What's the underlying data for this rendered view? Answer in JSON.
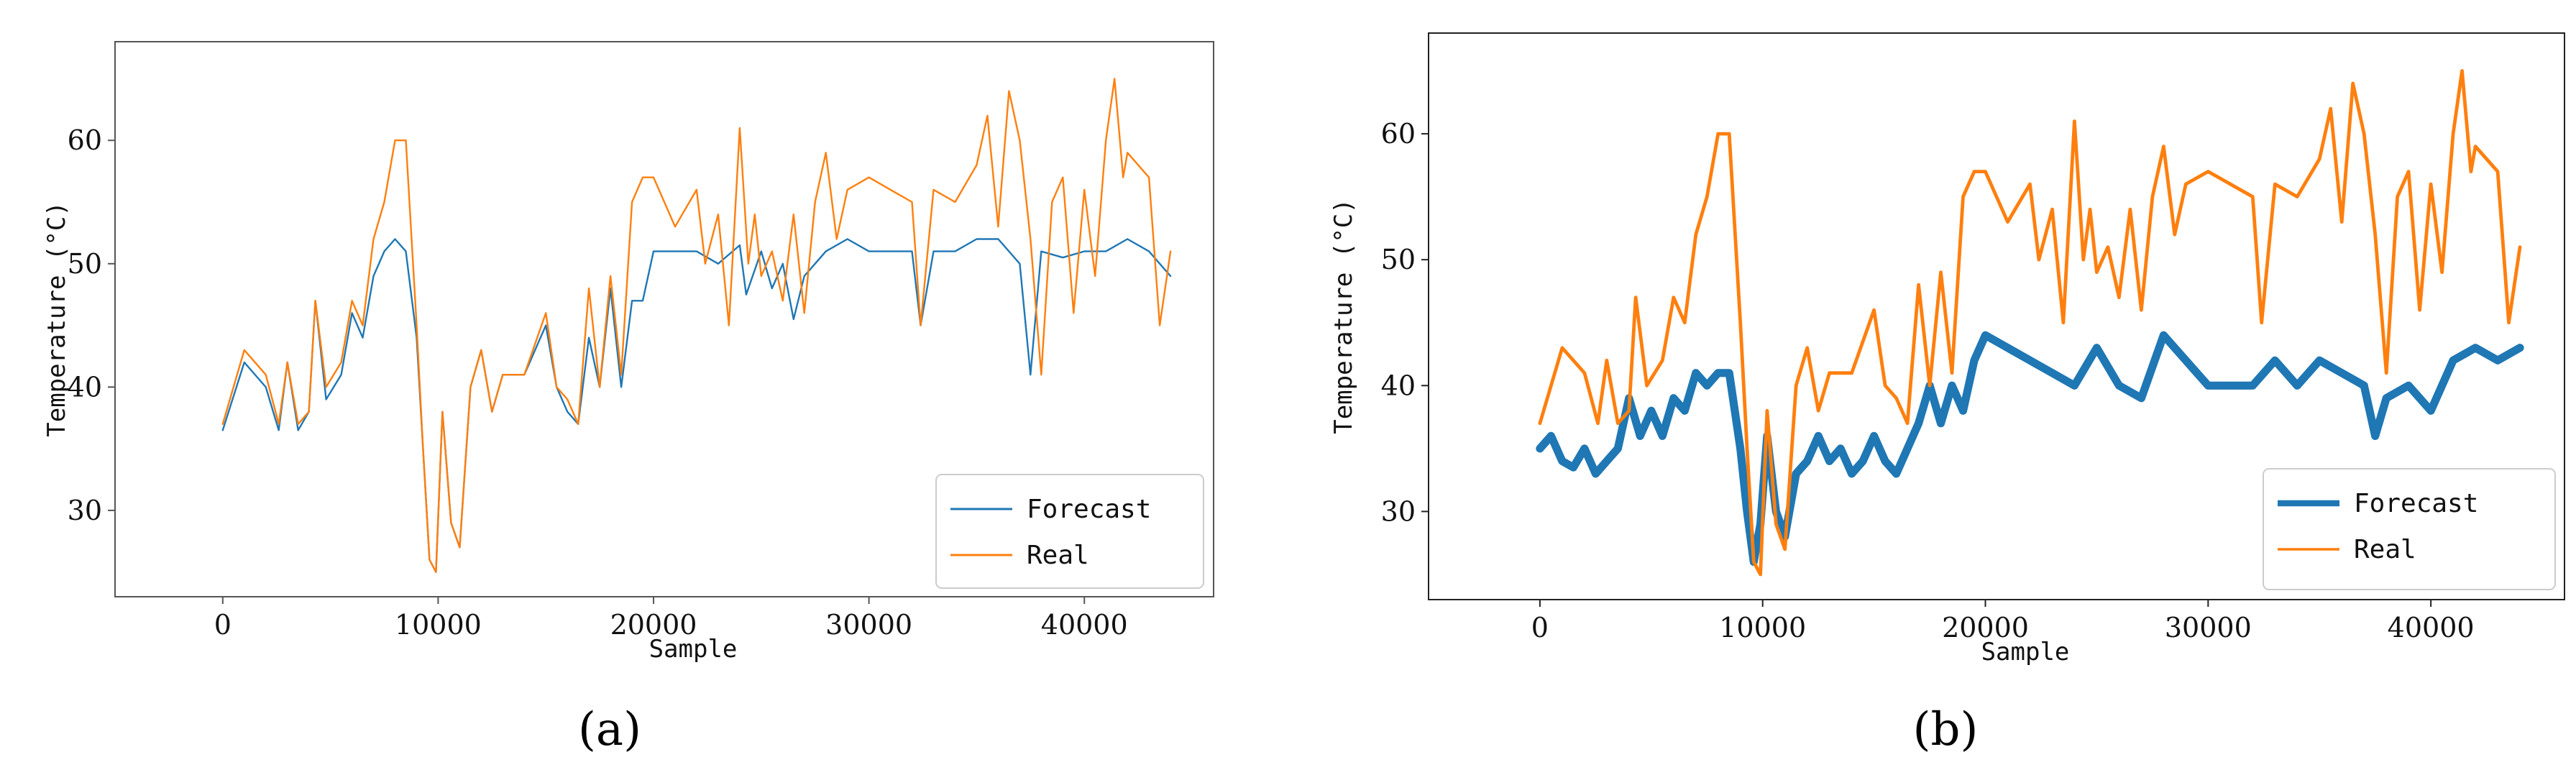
{
  "colors": {
    "forecast": "#1f77b4",
    "real": "#ff7f0e",
    "axis": "#333333"
  },
  "chart_data": [
    {
      "id": "a",
      "type": "line",
      "caption": "(a)",
      "xlabel": "Sample",
      "ylabel": "Temperature (°C)",
      "xlim": [
        -5000,
        46000
      ],
      "ylim": [
        23,
        68
      ],
      "xticks": [
        0,
        10000,
        20000,
        30000,
        40000
      ],
      "xtick_labels": [
        "0",
        "10000",
        "20000",
        "30000",
        "40000"
      ],
      "yticks": [
        30,
        40,
        50,
        60
      ],
      "ytick_labels": [
        "30",
        "40",
        "50",
        "60"
      ],
      "legend_position": "bottom-right",
      "series": [
        {
          "name": "Forecast",
          "color": "#1f77b4",
          "width": 1.5,
          "x": [
            0,
            1000,
            2000,
            2600,
            3000,
            3500,
            4000,
            4300,
            4800,
            5500,
            6000,
            6500,
            7000,
            7500,
            8000,
            8500,
            9000,
            9300,
            9600,
            9900,
            10200,
            10600,
            11000,
            11500,
            12000,
            12500,
            13000,
            14000,
            15000,
            15500,
            16000,
            16500,
            17000,
            17500,
            18000,
            18500,
            19000,
            19500,
            20000,
            21000,
            22000,
            23000,
            24000,
            24300,
            25000,
            25500,
            26000,
            26500,
            27000,
            28000,
            29000,
            30000,
            31000,
            32000,
            32400,
            33000,
            34000,
            35000,
            36000,
            37000,
            37500,
            38000,
            39000,
            40000,
            41000,
            42000,
            43000,
            44000
          ],
          "y": [
            36.5,
            42,
            40,
            36.5,
            42,
            36.5,
            38,
            47,
            39,
            41,
            46,
            44,
            49,
            51,
            52,
            51,
            44,
            35,
            26,
            25,
            38,
            29,
            27,
            40,
            43,
            38,
            41,
            41,
            45,
            40,
            38,
            37,
            44,
            40,
            48,
            40,
            47,
            47,
            51,
            51,
            51,
            50,
            51.5,
            47.5,
            51,
            48,
            50,
            45.5,
            49,
            51,
            52,
            51,
            51,
            51,
            45,
            51,
            51,
            52,
            52,
            50,
            41,
            51,
            50.5,
            51,
            51,
            52,
            51,
            49
          ]
        },
        {
          "name": "Real",
          "color": "#ff7f0e",
          "width": 1.5,
          "x": [
            0,
            1000,
            2000,
            2600,
            3000,
            3500,
            4000,
            4300,
            4800,
            5500,
            6000,
            6500,
            7000,
            7500,
            8000,
            8500,
            9000,
            9300,
            9600,
            9900,
            10200,
            10600,
            11000,
            11500,
            12000,
            12500,
            13000,
            14000,
            15000,
            15500,
            16000,
            16500,
            17000,
            17500,
            18000,
            18500,
            19000,
            19500,
            20000,
            21000,
            22000,
            22400,
            23000,
            23500,
            24000,
            24400,
            24700,
            25000,
            25500,
            26000,
            26500,
            27000,
            27500,
            28000,
            28500,
            29000,
            30000,
            31000,
            32000,
            32400,
            33000,
            34000,
            35000,
            35500,
            36000,
            36500,
            37000,
            37500,
            38000,
            38500,
            39000,
            39500,
            40000,
            40500,
            41000,
            41400,
            41800,
            42000,
            43000,
            43500,
            44000
          ],
          "y": [
            37,
            43,
            41,
            37,
            42,
            37,
            38,
            47,
            40,
            42,
            47,
            45,
            52,
            55,
            60,
            60,
            45,
            35,
            26,
            25,
            38,
            29,
            27,
            40,
            43,
            38,
            41,
            41,
            46,
            40,
            39,
            37,
            48,
            40,
            49,
            41,
            55,
            57,
            57,
            53,
            56,
            50,
            54,
            45,
            61,
            50,
            54,
            49,
            51,
            47,
            54,
            46,
            55,
            59,
            52,
            56,
            57,
            56,
            55,
            45,
            56,
            55,
            58,
            62,
            53,
            64,
            60,
            52,
            41,
            55,
            57,
            46,
            56,
            49,
            60,
            65,
            57,
            59,
            57,
            45,
            51
          ]
        }
      ]
    },
    {
      "id": "b",
      "type": "line",
      "caption": "(b)",
      "xlabel": "Sample",
      "ylabel": "Temperature (°C)",
      "xlim": [
        -5000,
        46000
      ],
      "ylim": [
        23,
        68
      ],
      "xticks": [
        0,
        10000,
        20000,
        30000,
        40000
      ],
      "xtick_labels": [
        "0",
        "10000",
        "20000",
        "30000",
        "40000"
      ],
      "yticks": [
        30,
        40,
        50,
        60
      ],
      "ytick_labels": [
        "30",
        "40",
        "50",
        "60"
      ],
      "legend_position": "bottom-right",
      "series": [
        {
          "name": "Forecast",
          "color": "#1f77b4",
          "width": 7,
          "x": [
            0,
            500,
            1000,
            1500,
            2000,
            2500,
            3000,
            3500,
            4000,
            4500,
            5000,
            5500,
            6000,
            6500,
            7000,
            7500,
            8000,
            8500,
            9000,
            9300,
            9600,
            9900,
            10200,
            10600,
            11000,
            11500,
            12000,
            12500,
            13000,
            13500,
            14000,
            14500,
            15000,
            15500,
            16000,
            16500,
            17000,
            17500,
            18000,
            18500,
            19000,
            19500,
            20000,
            21000,
            22000,
            23000,
            24000,
            25000,
            26000,
            27000,
            28000,
            29000,
            30000,
            31000,
            32000,
            33000,
            34000,
            35000,
            36000,
            37000,
            37500,
            38000,
            39000,
            40000,
            41000,
            42000,
            43000,
            44000
          ],
          "y": [
            35,
            36,
            34,
            33.5,
            35,
            33,
            34,
            35,
            39,
            36,
            38,
            36,
            39,
            38,
            41,
            40,
            41,
            41,
            35,
            30,
            26,
            29,
            36,
            30,
            28,
            33,
            34,
            36,
            34,
            35,
            33,
            34,
            36,
            34,
            33,
            35,
            37,
            40,
            37,
            40,
            38,
            42,
            44,
            43,
            42,
            41,
            40,
            43,
            40,
            39,
            44,
            42,
            40,
            40,
            40,
            42,
            40,
            42,
            41,
            40,
            36,
            39,
            40,
            38,
            42,
            43,
            42,
            43
          ]
        },
        {
          "name": "Real",
          "color": "#ff7f0e",
          "width": 3,
          "x": [
            0,
            1000,
            2000,
            2600,
            3000,
            3500,
            4000,
            4300,
            4800,
            5500,
            6000,
            6500,
            7000,
            7500,
            8000,
            8500,
            9000,
            9300,
            9600,
            9900,
            10200,
            10600,
            11000,
            11500,
            12000,
            12500,
            13000,
            14000,
            15000,
            15500,
            16000,
            16500,
            17000,
            17500,
            18000,
            18500,
            19000,
            19500,
            20000,
            21000,
            22000,
            22400,
            23000,
            23500,
            24000,
            24400,
            24700,
            25000,
            25500,
            26000,
            26500,
            27000,
            27500,
            28000,
            28500,
            29000,
            30000,
            31000,
            32000,
            32400,
            33000,
            34000,
            35000,
            35500,
            36000,
            36500,
            37000,
            37500,
            38000,
            38500,
            39000,
            39500,
            40000,
            40500,
            41000,
            41400,
            41800,
            42000,
            43000,
            43500,
            44000
          ],
          "y": [
            37,
            43,
            41,
            37,
            42,
            37,
            38,
            47,
            40,
            42,
            47,
            45,
            52,
            55,
            60,
            60,
            45,
            35,
            26,
            25,
            38,
            29,
            27,
            40,
            43,
            38,
            41,
            41,
            46,
            40,
            39,
            37,
            48,
            40,
            49,
            41,
            55,
            57,
            57,
            53,
            56,
            50,
            54,
            45,
            61,
            50,
            54,
            49,
            51,
            47,
            54,
            46,
            55,
            59,
            52,
            56,
            57,
            56,
            55,
            45,
            56,
            55,
            58,
            62,
            53,
            64,
            60,
            52,
            41,
            55,
            57,
            46,
            56,
            49,
            60,
            65,
            57,
            59,
            57,
            45,
            51
          ]
        }
      ]
    }
  ]
}
